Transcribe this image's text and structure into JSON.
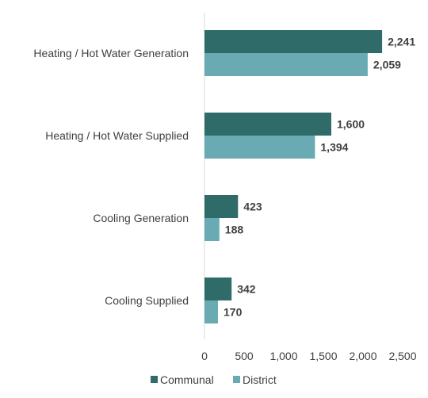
{
  "chart_data": {
    "type": "bar",
    "orientation": "horizontal",
    "categories": [
      "Heating / Hot Water Generation",
      "Heating / Hot Water Supplied",
      "Cooling Generation",
      "Cooling Supplied"
    ],
    "series": [
      {
        "name": "Communal",
        "values": [
          2241,
          1600,
          423,
          342
        ],
        "labels": [
          "2,241",
          "1,600",
          "423",
          "342"
        ],
        "color": "#2f6b68"
      },
      {
        "name": "District",
        "values": [
          2059,
          1394,
          188,
          170
        ],
        "labels": [
          "2,059",
          "1,394",
          "188",
          "170"
        ],
        "color": "#6aaab3"
      }
    ],
    "x_ticks": [
      0,
      500,
      1000,
      1500,
      2000,
      2500
    ],
    "x_tick_labels": [
      "0",
      "500",
      "1,000",
      "1,500",
      "2,000",
      "2,500"
    ],
    "xlim": [
      0,
      2500
    ],
    "title": "",
    "xlabel": "",
    "ylabel": "",
    "grid": false,
    "legend_position": "bottom"
  }
}
